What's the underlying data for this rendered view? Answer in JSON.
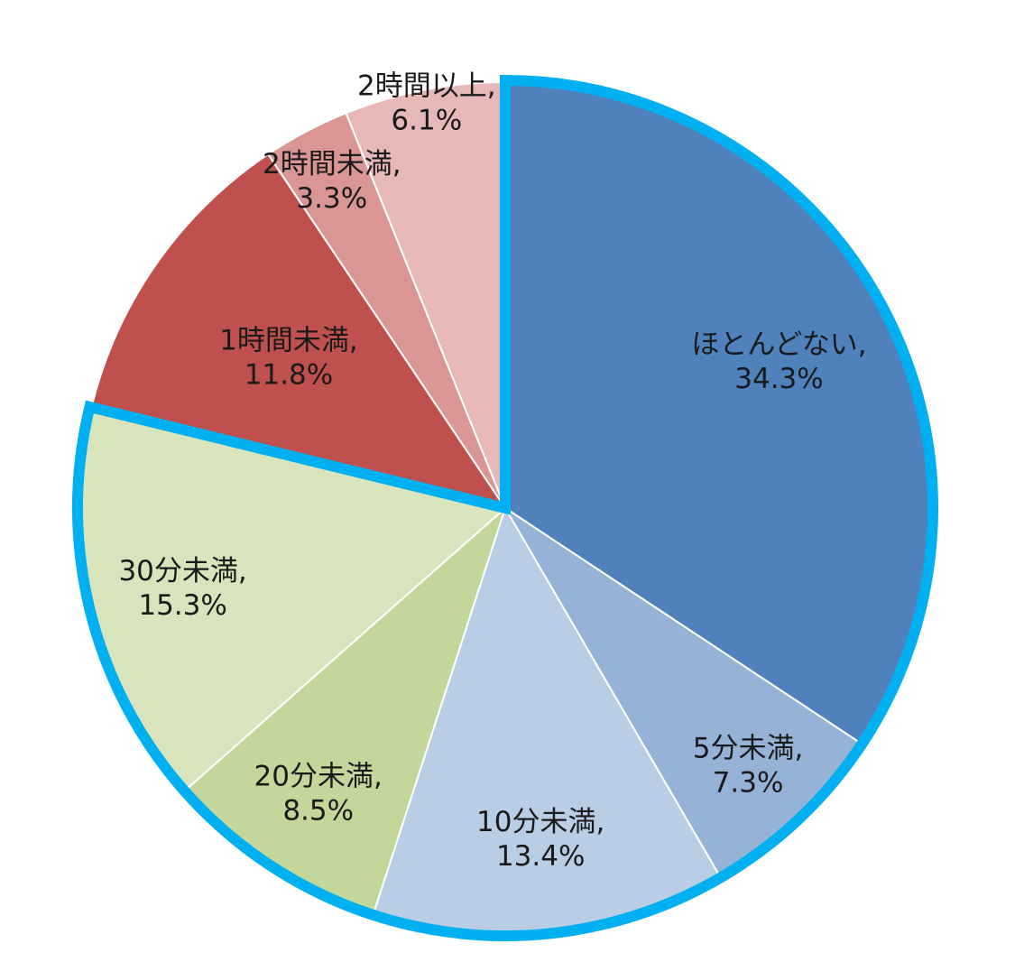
{
  "chart_data": {
    "type": "pie",
    "start": "12 o'clock, clockwise",
    "slices": [
      {
        "label": "ほとんどない",
        "value": 34.3,
        "value_label": "34.3%",
        "color": "#4f81bd"
      },
      {
        "label": "5分未満",
        "value": 7.3,
        "value_label": "7.3%",
        "color": "#95b3d7"
      },
      {
        "label": "10分未満",
        "value": 13.4,
        "value_label": "13.4%",
        "color": "#b9cde5"
      },
      {
        "label": "20分未満",
        "value": 8.5,
        "value_label": "8.5%",
        "color": "#c4d79b"
      },
      {
        "label": "30分未満",
        "value": 15.3,
        "value_label": "15.3%",
        "color": "#d8e4bc"
      },
      {
        "label": "1時間未満",
        "value": 11.8,
        "value_label": "11.8%",
        "color": "#c0504d"
      },
      {
        "label": "2時間未満",
        "value": 3.3,
        "value_label": "3.3%",
        "color": "#da9694"
      },
      {
        "label": "2時間以上",
        "value": 6.1,
        "value_label": "6.1%",
        "color": "#e6b9b8"
      }
    ],
    "highlight": {
      "from": "ほとんどない",
      "to": "30分未満",
      "color": "#00b0f0"
    }
  }
}
